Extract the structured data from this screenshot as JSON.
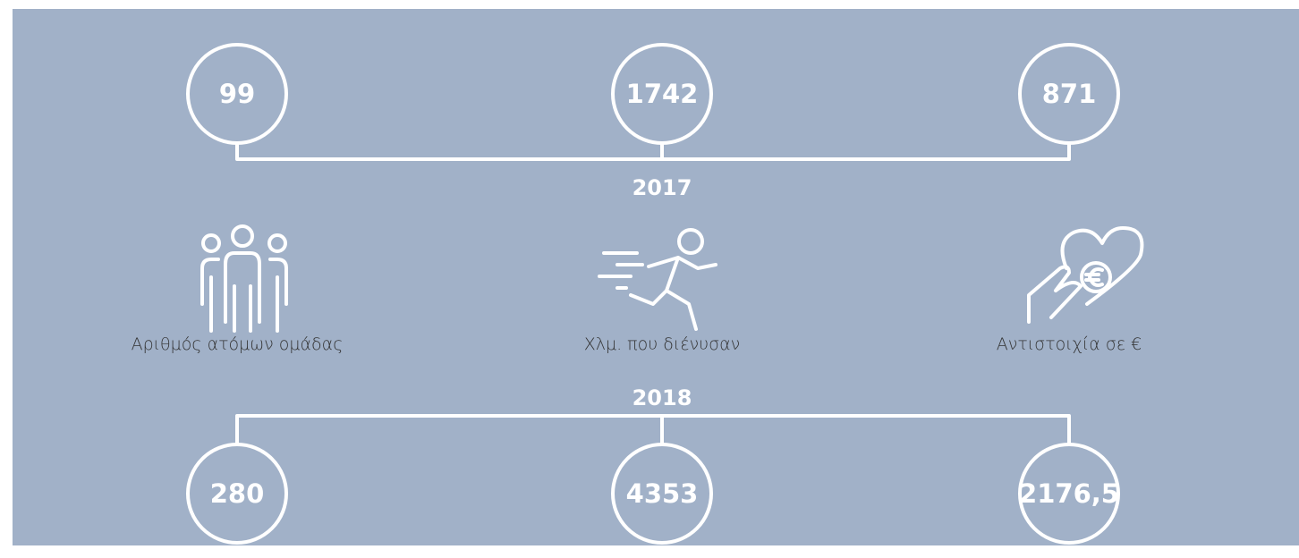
{
  "years": [
    {
      "label": "2017",
      "values": [
        "99",
        "1742",
        "871"
      ]
    },
    {
      "label": "2018",
      "values": [
        "280",
        "4353",
        "2176,5"
      ]
    }
  ],
  "metrics": [
    "Αριθμός ατόμων ομάδας",
    "Χλμ. που διένυσαν",
    "Αντιστοιχία σε €"
  ]
}
